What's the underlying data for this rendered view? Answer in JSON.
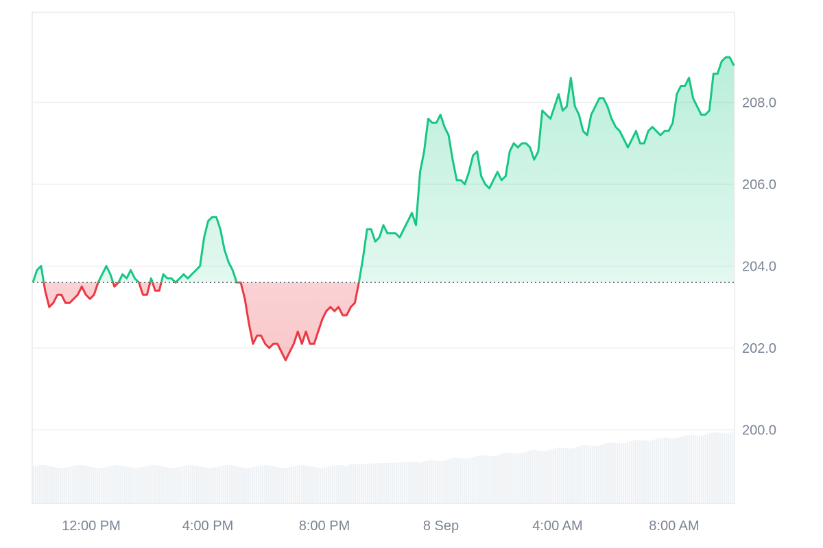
{
  "chart_data": {
    "type": "area",
    "title": "",
    "xlabel": "",
    "ylabel": "",
    "baseline": 203.6,
    "ylim": [
      198.2,
      210.2
    ],
    "grid": "horizontal",
    "x_ticks": [
      "12:00 PM",
      "4:00 PM",
      "8:00 PM",
      "8 Sep",
      "4:00 AM",
      "8:00 AM"
    ],
    "y_ticks": [
      "200.0",
      "202.0",
      "204.0",
      "206.0",
      "208.0"
    ],
    "colors": {
      "up": "#16c784",
      "down": "#ea3943",
      "volume": "#eef2f5"
    },
    "price": [
      203.6,
      203.9,
      204.0,
      203.4,
      203.0,
      203.1,
      203.3,
      203.3,
      203.1,
      203.1,
      203.2,
      203.3,
      203.5,
      203.3,
      203.2,
      203.3,
      203.6,
      203.8,
      204.0,
      203.8,
      203.5,
      203.6,
      203.8,
      203.7,
      203.9,
      203.7,
      203.6,
      203.3,
      203.3,
      203.7,
      203.4,
      203.4,
      203.8,
      203.7,
      203.7,
      203.6,
      203.7,
      203.8,
      203.7,
      203.8,
      203.9,
      204.0,
      204.7,
      205.1,
      205.2,
      205.2,
      204.9,
      204.4,
      204.1,
      203.9,
      203.6,
      203.6,
      203.2,
      202.6,
      202.1,
      202.3,
      202.3,
      202.1,
      202.0,
      202.1,
      202.1,
      201.9,
      201.7,
      201.9,
      202.1,
      202.4,
      202.1,
      202.4,
      202.1,
      202.1,
      202.4,
      202.7,
      202.9,
      203.0,
      202.9,
      203.0,
      202.8,
      202.8,
      203.0,
      203.1,
      203.6,
      204.2,
      204.9,
      204.9,
      204.6,
      204.7,
      205.0,
      204.8,
      204.8,
      204.8,
      204.7,
      204.9,
      205.1,
      205.3,
      205.0,
      206.3,
      206.8,
      207.6,
      207.5,
      207.5,
      207.7,
      207.4,
      207.2,
      206.6,
      206.1,
      206.1,
      206.0,
      206.3,
      206.7,
      206.8,
      206.2,
      206.0,
      205.9,
      206.1,
      206.3,
      206.1,
      206.2,
      206.8,
      207.0,
      206.9,
      207.0,
      207.0,
      206.9,
      206.6,
      206.8,
      207.8,
      207.7,
      207.6,
      207.9,
      208.2,
      207.8,
      207.9,
      208.6,
      207.9,
      207.7,
      207.3,
      207.2,
      207.7,
      207.9,
      208.1,
      208.1,
      207.9,
      207.6,
      207.4,
      207.3,
      207.1,
      206.9,
      207.1,
      207.3,
      207.0,
      207.0,
      207.3,
      207.4,
      207.3,
      207.2,
      207.3,
      207.3,
      207.5,
      208.2,
      208.4,
      208.4,
      208.6,
      208.1,
      207.9,
      207.7,
      207.7,
      207.8,
      208.7,
      208.7,
      209.0,
      209.1,
      209.1,
      208.9
    ]
  }
}
